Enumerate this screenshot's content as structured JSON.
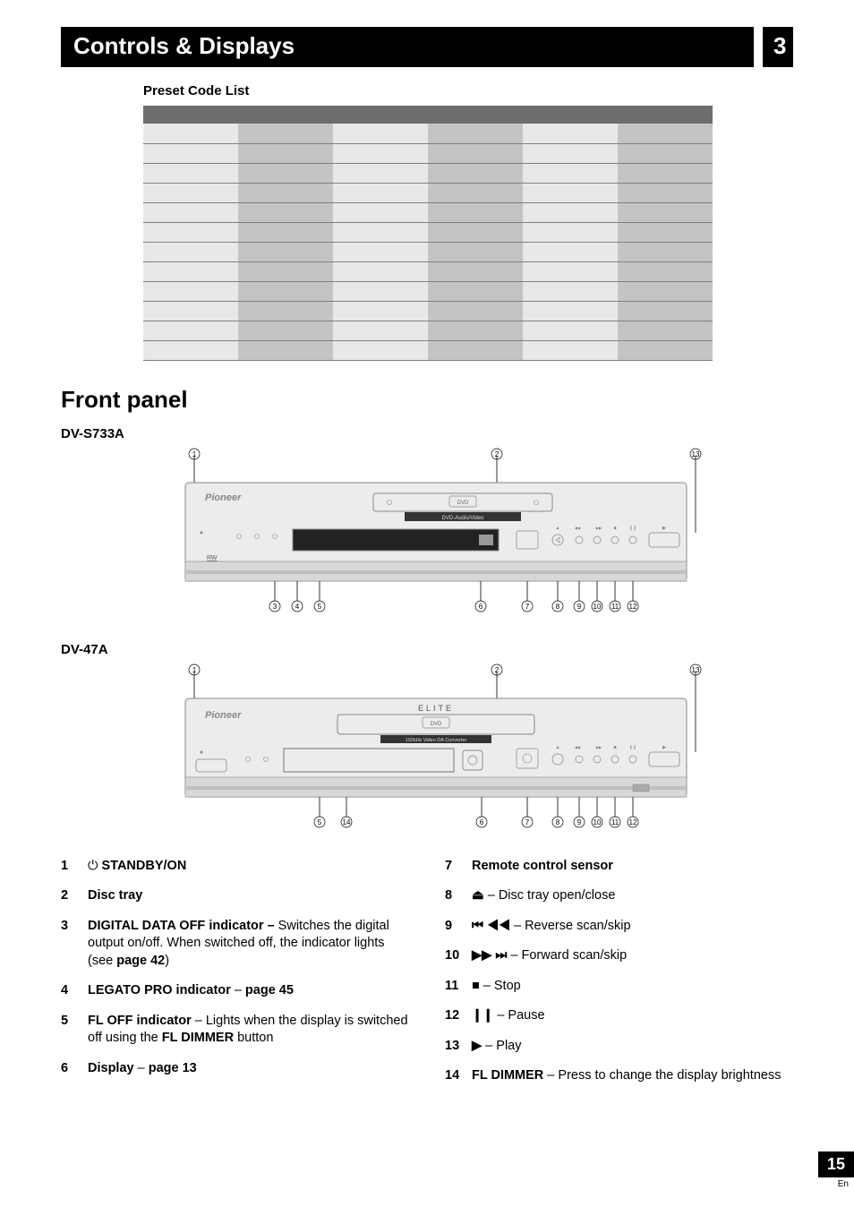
{
  "header": {
    "title": "Controls & Displays",
    "chapter": "3"
  },
  "preset": {
    "title": "Preset Code List",
    "cols": 6,
    "rows": 12
  },
  "front_panel": {
    "heading": "Front panel",
    "model_a": "DV-S733A",
    "model_b": "DV-47A",
    "elite_label": "ELITE",
    "sub_label_a": "DVD-Audio/Video",
    "sub_label_b": "192kHz Video DA Converter"
  },
  "callouts_a": [
    1,
    2,
    3,
    4,
    5,
    6,
    7,
    8,
    9,
    10,
    11,
    12,
    13
  ],
  "callouts_b": [
    1,
    2,
    5,
    6,
    7,
    8,
    9,
    10,
    11,
    12,
    13,
    14
  ],
  "items_left": [
    {
      "n": "1",
      "lead_icon": "⏻",
      "bold": "STANDBY/ON",
      "rest": ""
    },
    {
      "n": "2",
      "bold": "Disc tray",
      "rest": ""
    },
    {
      "n": "3",
      "bold": "DIGITAL DATA OFF indicator – ",
      "rest": "Switches the digital output on/off. When switched off, the indicator lights (see ",
      "bold2": "page 42",
      "rest2": ")"
    },
    {
      "n": "4",
      "bold": "LEGATO PRO indicator",
      "rest": " – ",
      "bold2": "page 45"
    },
    {
      "n": "5",
      "bold": "FL OFF indicator",
      "rest": " – Lights when the display is switched off using the ",
      "bold2": "FL DIMMER",
      "rest2": " button"
    },
    {
      "n": "6",
      "bold": "Display",
      "rest": " – ",
      "bold2": "page 13"
    }
  ],
  "items_right": [
    {
      "n": "7",
      "bold": "Remote control sensor",
      "rest": ""
    },
    {
      "n": "8",
      "icon": "⏏",
      "rest": " – Disc tray open/close"
    },
    {
      "n": "9",
      "icon": "⏮ ◀◀",
      "rest": " – Reverse scan/skip"
    },
    {
      "n": "10",
      "icon": "▶▶ ⏭",
      "rest": " – Forward scan/skip"
    },
    {
      "n": "11",
      "icon": "■",
      "rest": " – Stop"
    },
    {
      "n": "12",
      "icon": "❙❙",
      "rest": " – Pause"
    },
    {
      "n": "13",
      "icon": "▶",
      "rest": " – Play"
    },
    {
      "n": "14",
      "bold": "FL DIMMER",
      "rest": " – Press to change the display brightness"
    }
  ],
  "footer": {
    "page": "15",
    "lang": "En"
  },
  "colors": {
    "black": "#000000",
    "white": "#ffffff",
    "table_header": "#6d6d6d",
    "cell_light": "#e8e8e8",
    "cell_dark": "#c4c4c4",
    "device_fill": "#e6e6e6",
    "device_stroke": "#888888"
  }
}
